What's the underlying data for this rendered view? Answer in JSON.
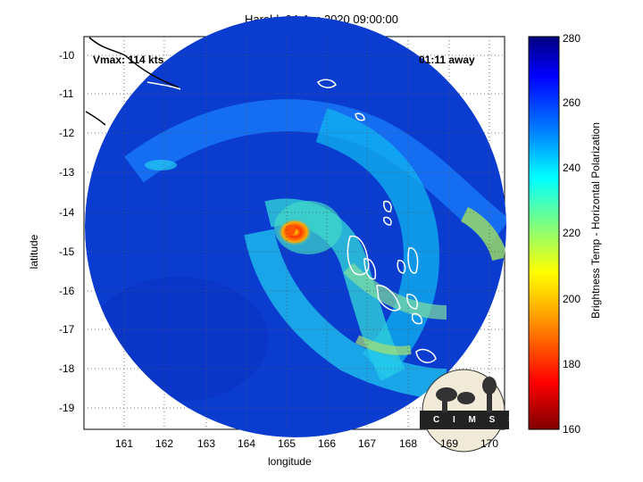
{
  "title": "Harold: 04-Apr-2020 09:00:00",
  "annotations": {
    "vmax": "Vmax: 114 kts",
    "time_away": "01:11 away"
  },
  "axes": {
    "xlabel": "longitude",
    "ylabel": "latitude",
    "xticks": [
      "161",
      "162",
      "163",
      "164",
      "165",
      "166",
      "167",
      "168",
      "169",
      "170"
    ],
    "yticks": [
      "-10",
      "-11",
      "-12",
      "-13",
      "-14",
      "-15",
      "-16",
      "-17",
      "-18",
      "-19"
    ]
  },
  "colorbar": {
    "label": "Brightness Temp - Horizontal Polarization",
    "ticks": [
      "280",
      "260",
      "240",
      "220",
      "200",
      "180",
      "160"
    ],
    "range": [
      160,
      280
    ],
    "colors": [
      "#7f0000",
      "#ff0000",
      "#ffaa00",
      "#ffff00",
      "#7fff7f",
      "#00ffff",
      "#0080ff",
      "#0000ff",
      "#00007f"
    ]
  },
  "logo": {
    "text": "CIMSS"
  },
  "colors": {
    "background_ocean": "#0a3ccf",
    "eye_warm": "#ff4400",
    "coast": "#ffffff"
  }
}
